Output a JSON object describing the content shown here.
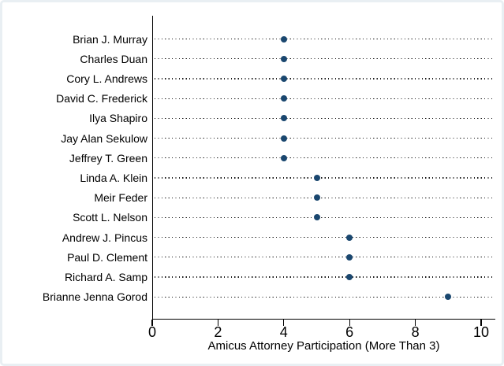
{
  "figure": {
    "background": "#ffffff",
    "border_color": "#e9eff3"
  },
  "chart_data": {
    "type": "scatter",
    "subtype": "horizontal-dot-plot",
    "title": "",
    "xlabel": "Amicus Attorney Participation (More Than 3)",
    "ylabel": "",
    "categories": [
      "Brian J. Murray",
      "Charles Duan",
      "Cory L. Andrews",
      "David C. Frederick",
      "Ilya Shapiro",
      "Jay Alan Sekulow",
      "Jeffrey T. Green",
      "Linda A. Klein",
      "Meir Feder",
      "Scott L. Nelson",
      "Andrew J. Pincus",
      "Paul D. Clement",
      "Richard A. Samp",
      "Brianne Jenna Gorod"
    ],
    "values": [
      4,
      4,
      4,
      4,
      4,
      4,
      4,
      5,
      5,
      5,
      6,
      6,
      6,
      9
    ],
    "xlim": [
      0,
      10.4
    ],
    "xticks": [
      0,
      2,
      4,
      6,
      8,
      10
    ],
    "grid": "dotted-leader-lines",
    "legend": "none",
    "marker_color": "#1a476f",
    "axis_color": "#000000",
    "leader_line_color": "#1a1a1a"
  }
}
